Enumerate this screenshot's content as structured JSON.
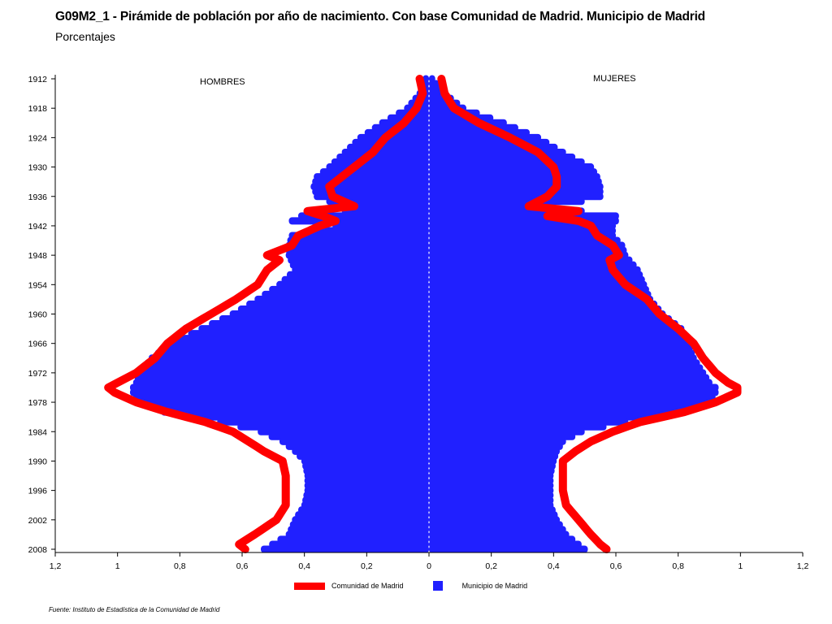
{
  "title": "G09M2_1 - Pirámide de población por año de nacimiento. Con base Comunidad de Madrid.  Municipio de Madrid",
  "subtitle": "Porcentajes",
  "source": "Fuente: Instituto de Estadística de la Comunidad de Madrid",
  "chart_data": {
    "type": "population-pyramid",
    "left_label": "HOMBRES",
    "right_label": "MUJERES",
    "xlim": [
      -1.2,
      1.2
    ],
    "x_ticks": [
      -1.2,
      -1,
      -0.8,
      -0.6,
      -0.4,
      -0.2,
      0,
      0.2,
      0.4,
      0.6,
      0.8,
      1,
      1.2
    ],
    "x_tick_labels": [
      "1,2",
      "1",
      "0,8",
      "0,6",
      "0,4",
      "0,2",
      "0",
      "0,2",
      "0,4",
      "0,6",
      "0,8",
      "1",
      "1,2"
    ],
    "y_ticks": [
      1912,
      1918,
      1924,
      1930,
      1936,
      1942,
      1948,
      1954,
      1960,
      1966,
      1972,
      1978,
      1984,
      1990,
      1996,
      2002,
      2008
    ],
    "ylim": [
      1912,
      2008
    ],
    "legend": [
      "Comunidad de Madrid",
      "Municipio de Madrid"
    ],
    "series": [
      {
        "name": "Municipio de Madrid",
        "kind": "bars",
        "color": "#2020ff",
        "years": [
          1912,
          1915,
          1918,
          1921,
          1924,
          1927,
          1930,
          1932,
          1934,
          1936,
          1937,
          1938,
          1939,
          1940,
          1941,
          1942,
          1944,
          1946,
          1948,
          1951,
          1954,
          1957,
          1960,
          1963,
          1966,
          1969,
          1972,
          1974,
          1975,
          1976,
          1978,
          1980,
          1982,
          1984,
          1986,
          1988,
          1990,
          1993,
          1996,
          1999,
          2002,
          2005,
          2008
        ],
        "men": [
          0.02,
          0.04,
          0.08,
          0.16,
          0.23,
          0.28,
          0.33,
          0.37,
          0.38,
          0.37,
          0.33,
          0.27,
          0.28,
          0.42,
          0.45,
          0.31,
          0.45,
          0.46,
          0.46,
          0.44,
          0.49,
          0.56,
          0.64,
          0.74,
          0.84,
          0.9,
          0.94,
          0.95,
          0.96,
          0.96,
          0.94,
          0.86,
          0.68,
          0.55,
          0.48,
          0.44,
          0.41,
          0.4,
          0.4,
          0.41,
          0.44,
          0.46,
          0.54
        ],
        "women": [
          0.02,
          0.06,
          0.12,
          0.25,
          0.36,
          0.44,
          0.53,
          0.55,
          0.56,
          0.56,
          0.5,
          0.38,
          0.5,
          0.61,
          0.61,
          0.6,
          0.6,
          0.63,
          0.64,
          0.68,
          0.7,
          0.72,
          0.76,
          0.82,
          0.84,
          0.86,
          0.89,
          0.91,
          0.93,
          0.93,
          0.91,
          0.82,
          0.64,
          0.5,
          0.44,
          0.42,
          0.41,
          0.4,
          0.4,
          0.4,
          0.42,
          0.45,
          0.51
        ]
      },
      {
        "name": "Comunidad de Madrid",
        "kind": "line",
        "color": "#ff0000",
        "years": [
          1912,
          1915,
          1918,
          1921,
          1924,
          1927,
          1930,
          1932,
          1934,
          1936,
          1938,
          1939,
          1940,
          1941,
          1942,
          1944,
          1946,
          1948,
          1949,
          1951,
          1954,
          1957,
          1960,
          1963,
          1966,
          1969,
          1972,
          1974,
          1975,
          1976,
          1978,
          1980,
          1982,
          1984,
          1986,
          1988,
          1990,
          1993,
          1996,
          1999,
          2002,
          2005,
          2007,
          2008
        ],
        "men": [
          0.03,
          0.02,
          0.04,
          0.08,
          0.14,
          0.18,
          0.24,
          0.28,
          0.32,
          0.31,
          0.24,
          0.39,
          0.34,
          0.3,
          0.35,
          0.42,
          0.44,
          0.52,
          0.48,
          0.52,
          0.55,
          0.62,
          0.7,
          0.78,
          0.84,
          0.88,
          0.94,
          1.0,
          1.03,
          1.01,
          0.94,
          0.84,
          0.72,
          0.63,
          0.58,
          0.53,
          0.47,
          0.46,
          0.46,
          0.46,
          0.49,
          0.56,
          0.61,
          0.59
        ],
        "women": [
          0.04,
          0.05,
          0.08,
          0.16,
          0.26,
          0.35,
          0.4,
          0.41,
          0.41,
          0.38,
          0.32,
          0.48,
          0.38,
          0.48,
          0.52,
          0.54,
          0.59,
          0.61,
          0.58,
          0.59,
          0.63,
          0.7,
          0.74,
          0.8,
          0.85,
          0.88,
          0.92,
          0.96,
          0.99,
          0.99,
          0.92,
          0.82,
          0.68,
          0.59,
          0.52,
          0.47,
          0.43,
          0.43,
          0.43,
          0.44,
          0.48,
          0.52,
          0.55,
          0.57
        ]
      }
    ]
  }
}
